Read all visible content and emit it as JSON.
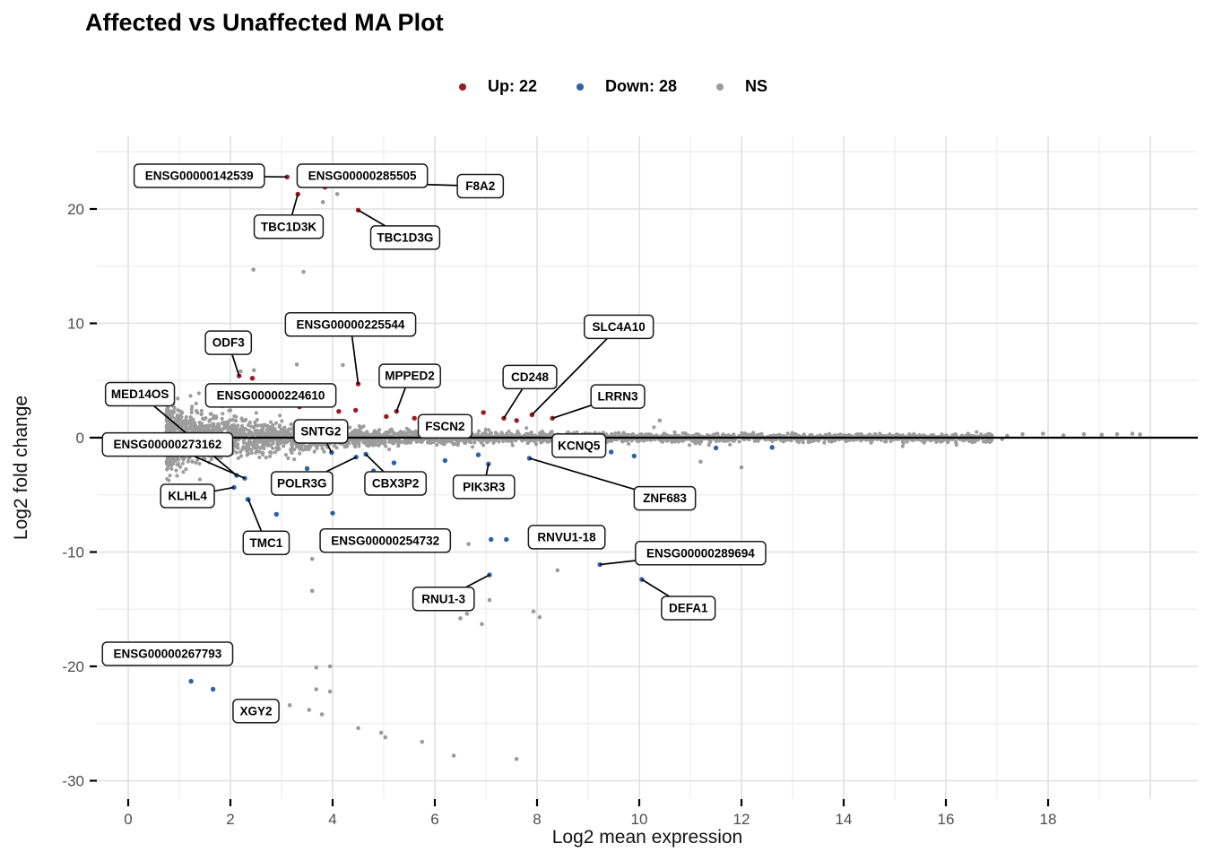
{
  "title": "Affected vs Unaffected MA Plot",
  "legend": {
    "up_label": "Up: 22",
    "down_label": "Down: 28",
    "ns_label": "NS"
  },
  "colors": {
    "up": "#9e1b25",
    "down": "#2b63ab",
    "ns": "#9c9c9c",
    "grid_major": "#e0e0e0",
    "grid_minor": "#ededed",
    "zero_line": "#000000",
    "label_bg": "#ffffff",
    "label_border": "#1a1a1a",
    "axis_tick_text": "#4d4d4d",
    "axis_title_text": "#111111"
  },
  "chart_data": {
    "type": "scatter",
    "title": "Affected vs Unaffected MA Plot",
    "xlabel": "Log2 mean expression",
    "ylabel": "Log2 fold change",
    "xlim": [
      -0.6,
      20.9
    ],
    "ylim": [
      -31.8,
      26.4
    ],
    "x_ticks": [
      0,
      2,
      4,
      6,
      8,
      10,
      12,
      14,
      16,
      18
    ],
    "y_ticks": [
      -30,
      -20,
      -10,
      0,
      10,
      20
    ],
    "grid": "major+minor",
    "legend_position": "top",
    "legend_entries": [
      {
        "label": "Up: 22",
        "count": 22,
        "color_key": "up"
      },
      {
        "label": "Down: 28",
        "count": 28,
        "color_key": "down"
      },
      {
        "label": "NS",
        "color_key": "ns"
      }
    ],
    "zero_line_y": 0,
    "labeled_genes": [
      {
        "name": "ENSG00000142539",
        "status": "up",
        "x": 3.11,
        "y": 22.8,
        "label_x": 1.39,
        "label_y": 22.9,
        "leader": true
      },
      {
        "name": "ENSG00000285505",
        "status": "up",
        "x": 3.85,
        "y": 21.9,
        "label_x": 4.58,
        "label_y": 22.9,
        "leader": false
      },
      {
        "name": "F8A2",
        "status": "up",
        "x": 4.6,
        "y": 22.3,
        "label_x": 6.89,
        "label_y": 22.0,
        "leader": true
      },
      {
        "name": "TBC1D3K",
        "status": "up",
        "x": 3.32,
        "y": 21.3,
        "label_x": 3.14,
        "label_y": 18.45,
        "leader": true
      },
      {
        "name": "TBC1D3G",
        "status": "up",
        "x": 4.5,
        "y": 19.9,
        "label_x": 5.42,
        "label_y": 17.5,
        "leader": true
      },
      {
        "name": "ENSG00000225544",
        "status": "up",
        "x": 4.5,
        "y": 4.7,
        "label_x": 4.35,
        "label_y": 9.9,
        "leader": true
      },
      {
        "name": "ODF3",
        "status": "up",
        "x": 2.17,
        "y": 5.4,
        "label_x": 1.96,
        "label_y": 8.3,
        "leader": true
      },
      {
        "name": "MPPED2",
        "status": "up",
        "x": 5.25,
        "y": 2.3,
        "label_x": 5.51,
        "label_y": 5.4,
        "leader": true
      },
      {
        "name": "ENSG00000224610",
        "status": "up",
        "x": 3.35,
        "y": 2.7,
        "label_x": 2.79,
        "label_y": 3.7,
        "leader": false
      },
      {
        "name": "CD248",
        "status": "up",
        "x": 7.35,
        "y": 1.7,
        "label_x": 7.86,
        "label_y": 5.3,
        "leader": true
      },
      {
        "name": "SLC4A10",
        "status": "up",
        "x": 7.9,
        "y": 2.0,
        "label_x": 9.6,
        "label_y": 9.7,
        "leader": true
      },
      {
        "name": "LRRN3",
        "status": "up",
        "x": 8.3,
        "y": 1.7,
        "label_x": 9.58,
        "label_y": 3.6,
        "leader": true
      },
      {
        "name": "FSCN2",
        "status": "up",
        "x": 6.3,
        "y": 1.6,
        "label_x": 6.2,
        "label_y": 1.0,
        "leader": false
      },
      {
        "name": "SNTG2",
        "status": "down",
        "x": 3.98,
        "y": -1.3,
        "label_x": 3.77,
        "label_y": 0.55,
        "leader": true
      },
      {
        "name": "MED14OS",
        "status": "down",
        "x": 2.12,
        "y": -3.3,
        "label_x": 0.23,
        "label_y": 3.8,
        "leader": true
      },
      {
        "name": "ENSG00000273162",
        "status": "down",
        "x": 2.28,
        "y": -3.55,
        "label_x": 0.77,
        "label_y": -0.6,
        "leader": true
      },
      {
        "name": "KLHL4",
        "status": "down",
        "x": 2.07,
        "y": -4.35,
        "label_x": 1.16,
        "label_y": -5.1,
        "leader": true
      },
      {
        "name": "TMC1",
        "status": "down",
        "x": 2.35,
        "y": -5.4,
        "label_x": 2.7,
        "label_y": -9.2,
        "leader": true
      },
      {
        "name": "POLR3G",
        "status": "down",
        "x": 4.46,
        "y": -1.7,
        "label_x": 3.4,
        "label_y": -4.0,
        "leader": true
      },
      {
        "name": "CBX3P2",
        "status": "down",
        "x": 4.65,
        "y": -1.45,
        "label_x": 5.23,
        "label_y": -4.0,
        "leader": true
      },
      {
        "name": "PIK3R3",
        "status": "down",
        "x": 7.05,
        "y": -2.3,
        "label_x": 6.96,
        "label_y": -4.3,
        "leader": true
      },
      {
        "name": "ZNF683",
        "status": "down",
        "x": 7.85,
        "y": -1.8,
        "label_x": 10.5,
        "label_y": -5.3,
        "leader": true
      },
      {
        "name": "KCNQ5",
        "status": "down",
        "x": 9.45,
        "y": -1.25,
        "label_x": 8.82,
        "label_y": -0.7,
        "leader": false
      },
      {
        "name": "ENSG00000254732",
        "status": "down",
        "x": 7.1,
        "y": -8.9,
        "label_x": 5.03,
        "label_y": -9.0,
        "leader": false
      },
      {
        "name": "RNVU1-18",
        "status": "down",
        "x": 7.4,
        "y": -8.9,
        "label_x": 8.58,
        "label_y": -8.7,
        "leader": false
      },
      {
        "name": "ENSG00000289694",
        "status": "down",
        "x": 9.23,
        "y": -11.1,
        "label_x": 11.2,
        "label_y": -10.1,
        "leader": true
      },
      {
        "name": "RNU1-3",
        "status": "down",
        "x": 7.07,
        "y": -12.0,
        "label_x": 6.17,
        "label_y": -14.1,
        "leader": true
      },
      {
        "name": "DEFA1",
        "status": "down",
        "x": 10.05,
        "y": -12.4,
        "label_x": 10.96,
        "label_y": -14.9,
        "leader": true
      },
      {
        "name": "ENSG00000267793",
        "status": "down",
        "x": 1.23,
        "y": -21.3,
        "label_x": 0.77,
        "label_y": -18.9,
        "leader": false
      },
      {
        "name": "XGY2",
        "status": "down",
        "x": 1.66,
        "y": -22.0,
        "label_x": 2.5,
        "label_y": -23.9,
        "leader": false
      }
    ],
    "unlabeled_up_points": [
      [
        2.43,
        5.2
      ],
      [
        4.12,
        2.3
      ],
      [
        4.45,
        2.4
      ],
      [
        5.05,
        1.85
      ],
      [
        5.6,
        1.7
      ],
      [
        6.55,
        1.55
      ],
      [
        6.95,
        2.2
      ],
      [
        7.6,
        1.5
      ],
      [
        3.0,
        2.9
      ]
    ],
    "unlabeled_down_points": [
      [
        2.34,
        -5.4
      ],
      [
        2.9,
        -6.7
      ],
      [
        4.0,
        -6.6
      ],
      [
        3.5,
        -2.7
      ],
      [
        4.8,
        -2.9
      ],
      [
        5.2,
        -2.2
      ],
      [
        6.2,
        -2.0
      ],
      [
        6.85,
        -1.5
      ],
      [
        11.5,
        -0.9
      ],
      [
        12.6,
        -0.85
      ],
      [
        9.9,
        -1.6
      ]
    ],
    "ns_outlier_points": [
      [
        4.09,
        21.3
      ],
      [
        3.81,
        20.6
      ],
      [
        2.45,
        14.7
      ],
      [
        3.43,
        14.5
      ],
      [
        2.2,
        5.8
      ],
      [
        2.46,
        5.9
      ],
      [
        4.2,
        6.35
      ],
      [
        3.3,
        6.4
      ],
      [
        10.4,
        1.5
      ],
      [
        6.66,
        -9.3
      ],
      [
        8.4,
        -11.6
      ],
      [
        7.07,
        -14.2
      ],
      [
        7.93,
        -15.2
      ],
      [
        8.05,
        -15.7
      ],
      [
        6.5,
        -15.8
      ],
      [
        6.63,
        -15.4
      ],
      [
        6.92,
        -16.3
      ],
      [
        6.3,
        -13.3
      ],
      [
        3.6,
        -10.6
      ],
      [
        3.6,
        -13.4
      ],
      [
        3.68,
        -20.1
      ],
      [
        3.95,
        -20.0
      ],
      [
        3.68,
        -22.0
      ],
      [
        3.95,
        -22.2
      ],
      [
        3.16,
        -23.4
      ],
      [
        3.54,
        -23.8
      ],
      [
        3.79,
        -24.2
      ],
      [
        4.5,
        -25.4
      ],
      [
        4.95,
        -25.8
      ],
      [
        5.03,
        -26.2
      ],
      [
        5.75,
        -26.6
      ],
      [
        6.37,
        -27.8
      ],
      [
        7.6,
        -28.1
      ],
      [
        12.0,
        -2.6
      ],
      [
        11.2,
        -2.1
      ],
      [
        16.9,
        0.2
      ],
      [
        17.2,
        0.15
      ],
      [
        17.5,
        0.3
      ],
      [
        17.9,
        0.35
      ],
      [
        18.3,
        0.2
      ],
      [
        18.7,
        0.3
      ],
      [
        19.05,
        0.25
      ],
      [
        19.35,
        0.3
      ],
      [
        19.65,
        0.35
      ],
      [
        19.8,
        0.28
      ],
      [
        16.6,
        -0.15
      ],
      [
        17.1,
        -0.12
      ]
    ],
    "background_cloud": {
      "series_name": "NS",
      "n_points": 3400,
      "seed": 42,
      "x_range": [
        0.75,
        16.9
      ],
      "centered_on_y": 0,
      "spread_model": "sd = (0.32 + 3.4*exp(-x/2.1)) * 0.52; wide at low expression, tight band at high expression"
    }
  },
  "axis": {
    "x_title": "Log2 mean expression",
    "y_title": "Log2 fold change"
  }
}
